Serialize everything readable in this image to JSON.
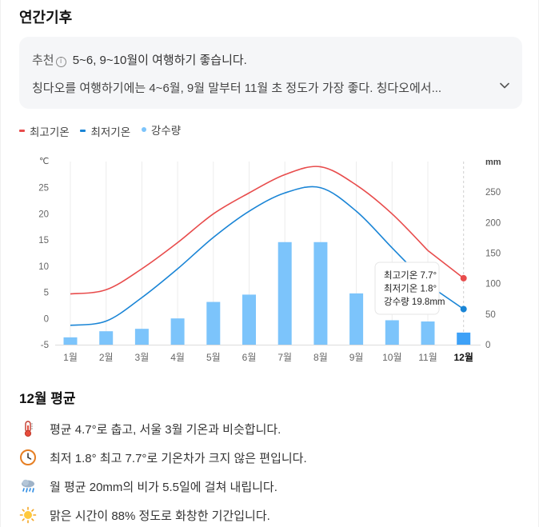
{
  "section_title": "연간기후",
  "recommendation": {
    "tag": "추천",
    "info_glyph": "i",
    "summary": "5~6, 9~10월이 여행하기 좋습니다.",
    "detail": "칭다오를 여행하기에는 4~6월, 9월 말부터 11월 초 정도가 가장 좋다. 칭다오에서..."
  },
  "legend": {
    "max_temp": "최고기온",
    "min_temp": "최저기온",
    "rain": "강수량"
  },
  "colors": {
    "max_temp": "#e84c4c",
    "min_temp": "#1a85d6",
    "rain": "#7cc4fb",
    "rain_selected": "#3ea1f7"
  },
  "chart_data": {
    "type": "bar+line",
    "categories": [
      "1월",
      "2월",
      "3월",
      "4월",
      "5월",
      "6월",
      "7월",
      "8월",
      "9월",
      "10월",
      "11월",
      "12월"
    ],
    "series": [
      {
        "name": "최고기온",
        "axis": "left",
        "values": [
          4.7,
          5.5,
          9.5,
          14.5,
          20.0,
          24.0,
          27.5,
          29.0,
          25.5,
          20.0,
          13.0,
          7.7
        ]
      },
      {
        "name": "최저기온",
        "axis": "left",
        "values": [
          -1.3,
          -0.5,
          4.0,
          9.5,
          15.5,
          20.5,
          24.0,
          25.0,
          20.5,
          13.5,
          6.5,
          1.8
        ]
      },
      {
        "name": "강수량",
        "axis": "right",
        "type": "bar",
        "values": [
          12,
          22,
          26,
          43,
          70,
          82,
          168,
          168,
          84,
          40,
          38,
          19.8
        ]
      }
    ],
    "left_unit": "℃",
    "right_unit": "mm",
    "left_ylim": [
      -5,
      30
    ],
    "left_ticks": [
      "-5",
      "0",
      "5",
      "10",
      "15",
      "20",
      "25"
    ],
    "right_ylim": [
      0,
      300
    ],
    "right_ticks": [
      "0",
      "50",
      "100",
      "150",
      "200",
      "250"
    ],
    "selected_index": 11,
    "tooltip": [
      "최고기온 7.7°",
      "최저기온 1.8°",
      "강수량 19.8mm"
    ]
  },
  "average": {
    "title": "12월 평균",
    "items": [
      {
        "icon": "thermometer-icon",
        "text": "평균 4.7°로 춥고, 서울 3월 기온과 비슷합니다."
      },
      {
        "icon": "clock-icon",
        "text": "최저 1.8° 최고 7.7°로 기온차가 크지 않은 편입니다."
      },
      {
        "icon": "rain-cloud-icon",
        "text": "월 평균 20mm의 비가 5.5일에 걸쳐 내립니다."
      },
      {
        "icon": "sun-icon",
        "text": "맑은 시간이 88% 정도로 화창한 기간입니다."
      }
    ]
  }
}
